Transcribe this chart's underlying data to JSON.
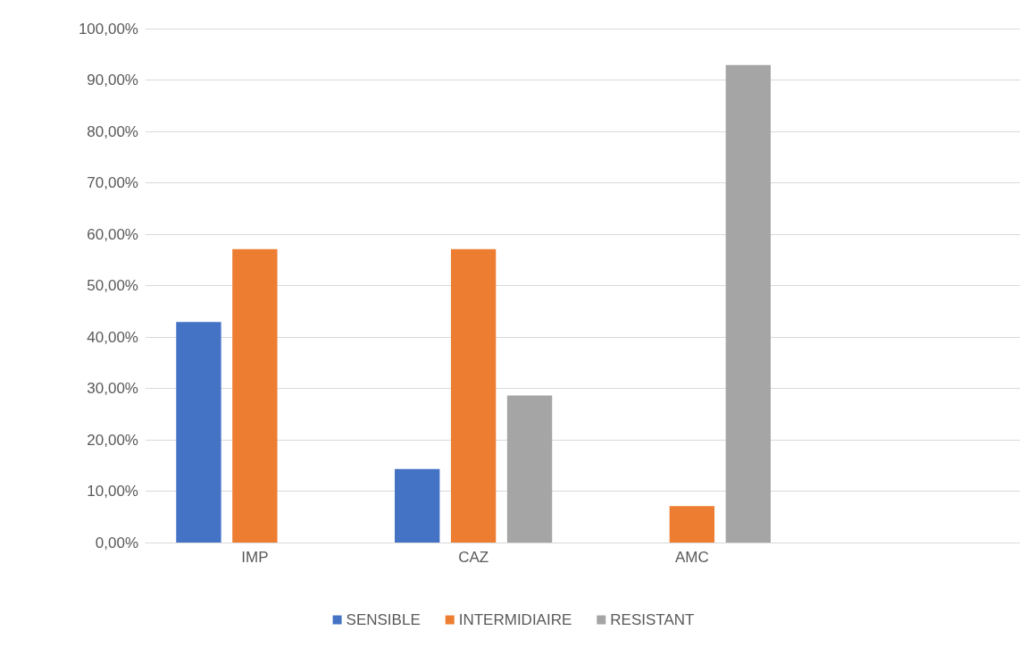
{
  "chart_data": {
    "type": "bar",
    "categories": [
      "IMP",
      "CAZ",
      "AMC",
      null
    ],
    "series": [
      {
        "name": "SENSIBLE",
        "color": "#4472c4",
        "values": [
          42.9,
          14.3,
          0,
          null
        ]
      },
      {
        "name": "INTERMIDIAIRE",
        "color": "#ed7d31",
        "values": [
          57.1,
          57.1,
          7.1,
          null
        ]
      },
      {
        "name": "RESISTANT",
        "color": "#a5a5a5",
        "values": [
          0,
          28.6,
          92.9,
          null
        ]
      }
    ],
    "ylim": [
      0,
      100
    ],
    "yticks": [
      {
        "value": 0,
        "label": "0,00%"
      },
      {
        "value": 10,
        "label": "10,00%"
      },
      {
        "value": 20,
        "label": "20,00%"
      },
      {
        "value": 30,
        "label": "30,00%"
      },
      {
        "value": 40,
        "label": "40,00%"
      },
      {
        "value": 50,
        "label": "50,00%"
      },
      {
        "value": 60,
        "label": "60,00%"
      },
      {
        "value": 70,
        "label": "70,00%"
      },
      {
        "value": 80,
        "label": "80,00%"
      },
      {
        "value": 90,
        "label": "90,00%"
      },
      {
        "value": 100,
        "label": "100,00%"
      }
    ],
    "grid": "y",
    "legend": "bottom"
  }
}
